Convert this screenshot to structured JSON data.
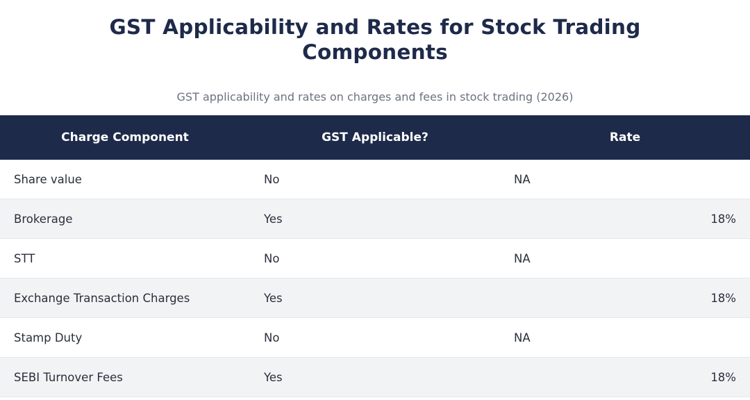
{
  "title": "GST Applicability and Rates for Stock Trading Components",
  "subtitle": "GST applicability and rates on charges and fees in stock trading (2026)",
  "table": {
    "headers": [
      "Charge Component",
      "GST Applicable?",
      "Rate"
    ],
    "rows": [
      {
        "component": "Share value",
        "applicable": "No",
        "rate": "NA"
      },
      {
        "component": "Brokerage",
        "applicable": "Yes",
        "rate": "18%"
      },
      {
        "component": "STT",
        "applicable": "No",
        "rate": "NA"
      },
      {
        "component": "Exchange Transaction Charges",
        "applicable": "Yes",
        "rate": "18%"
      },
      {
        "component": "Stamp Duty",
        "applicable": "No",
        "rate": "NA"
      },
      {
        "component": "SEBI Turnover Fees",
        "applicable": "Yes",
        "rate": "18%"
      }
    ]
  },
  "colors": {
    "header_bg": "#1e2a4a",
    "title": "#1e2a4a",
    "subtitle": "#6b7280",
    "row_alt": "#f2f3f5"
  }
}
